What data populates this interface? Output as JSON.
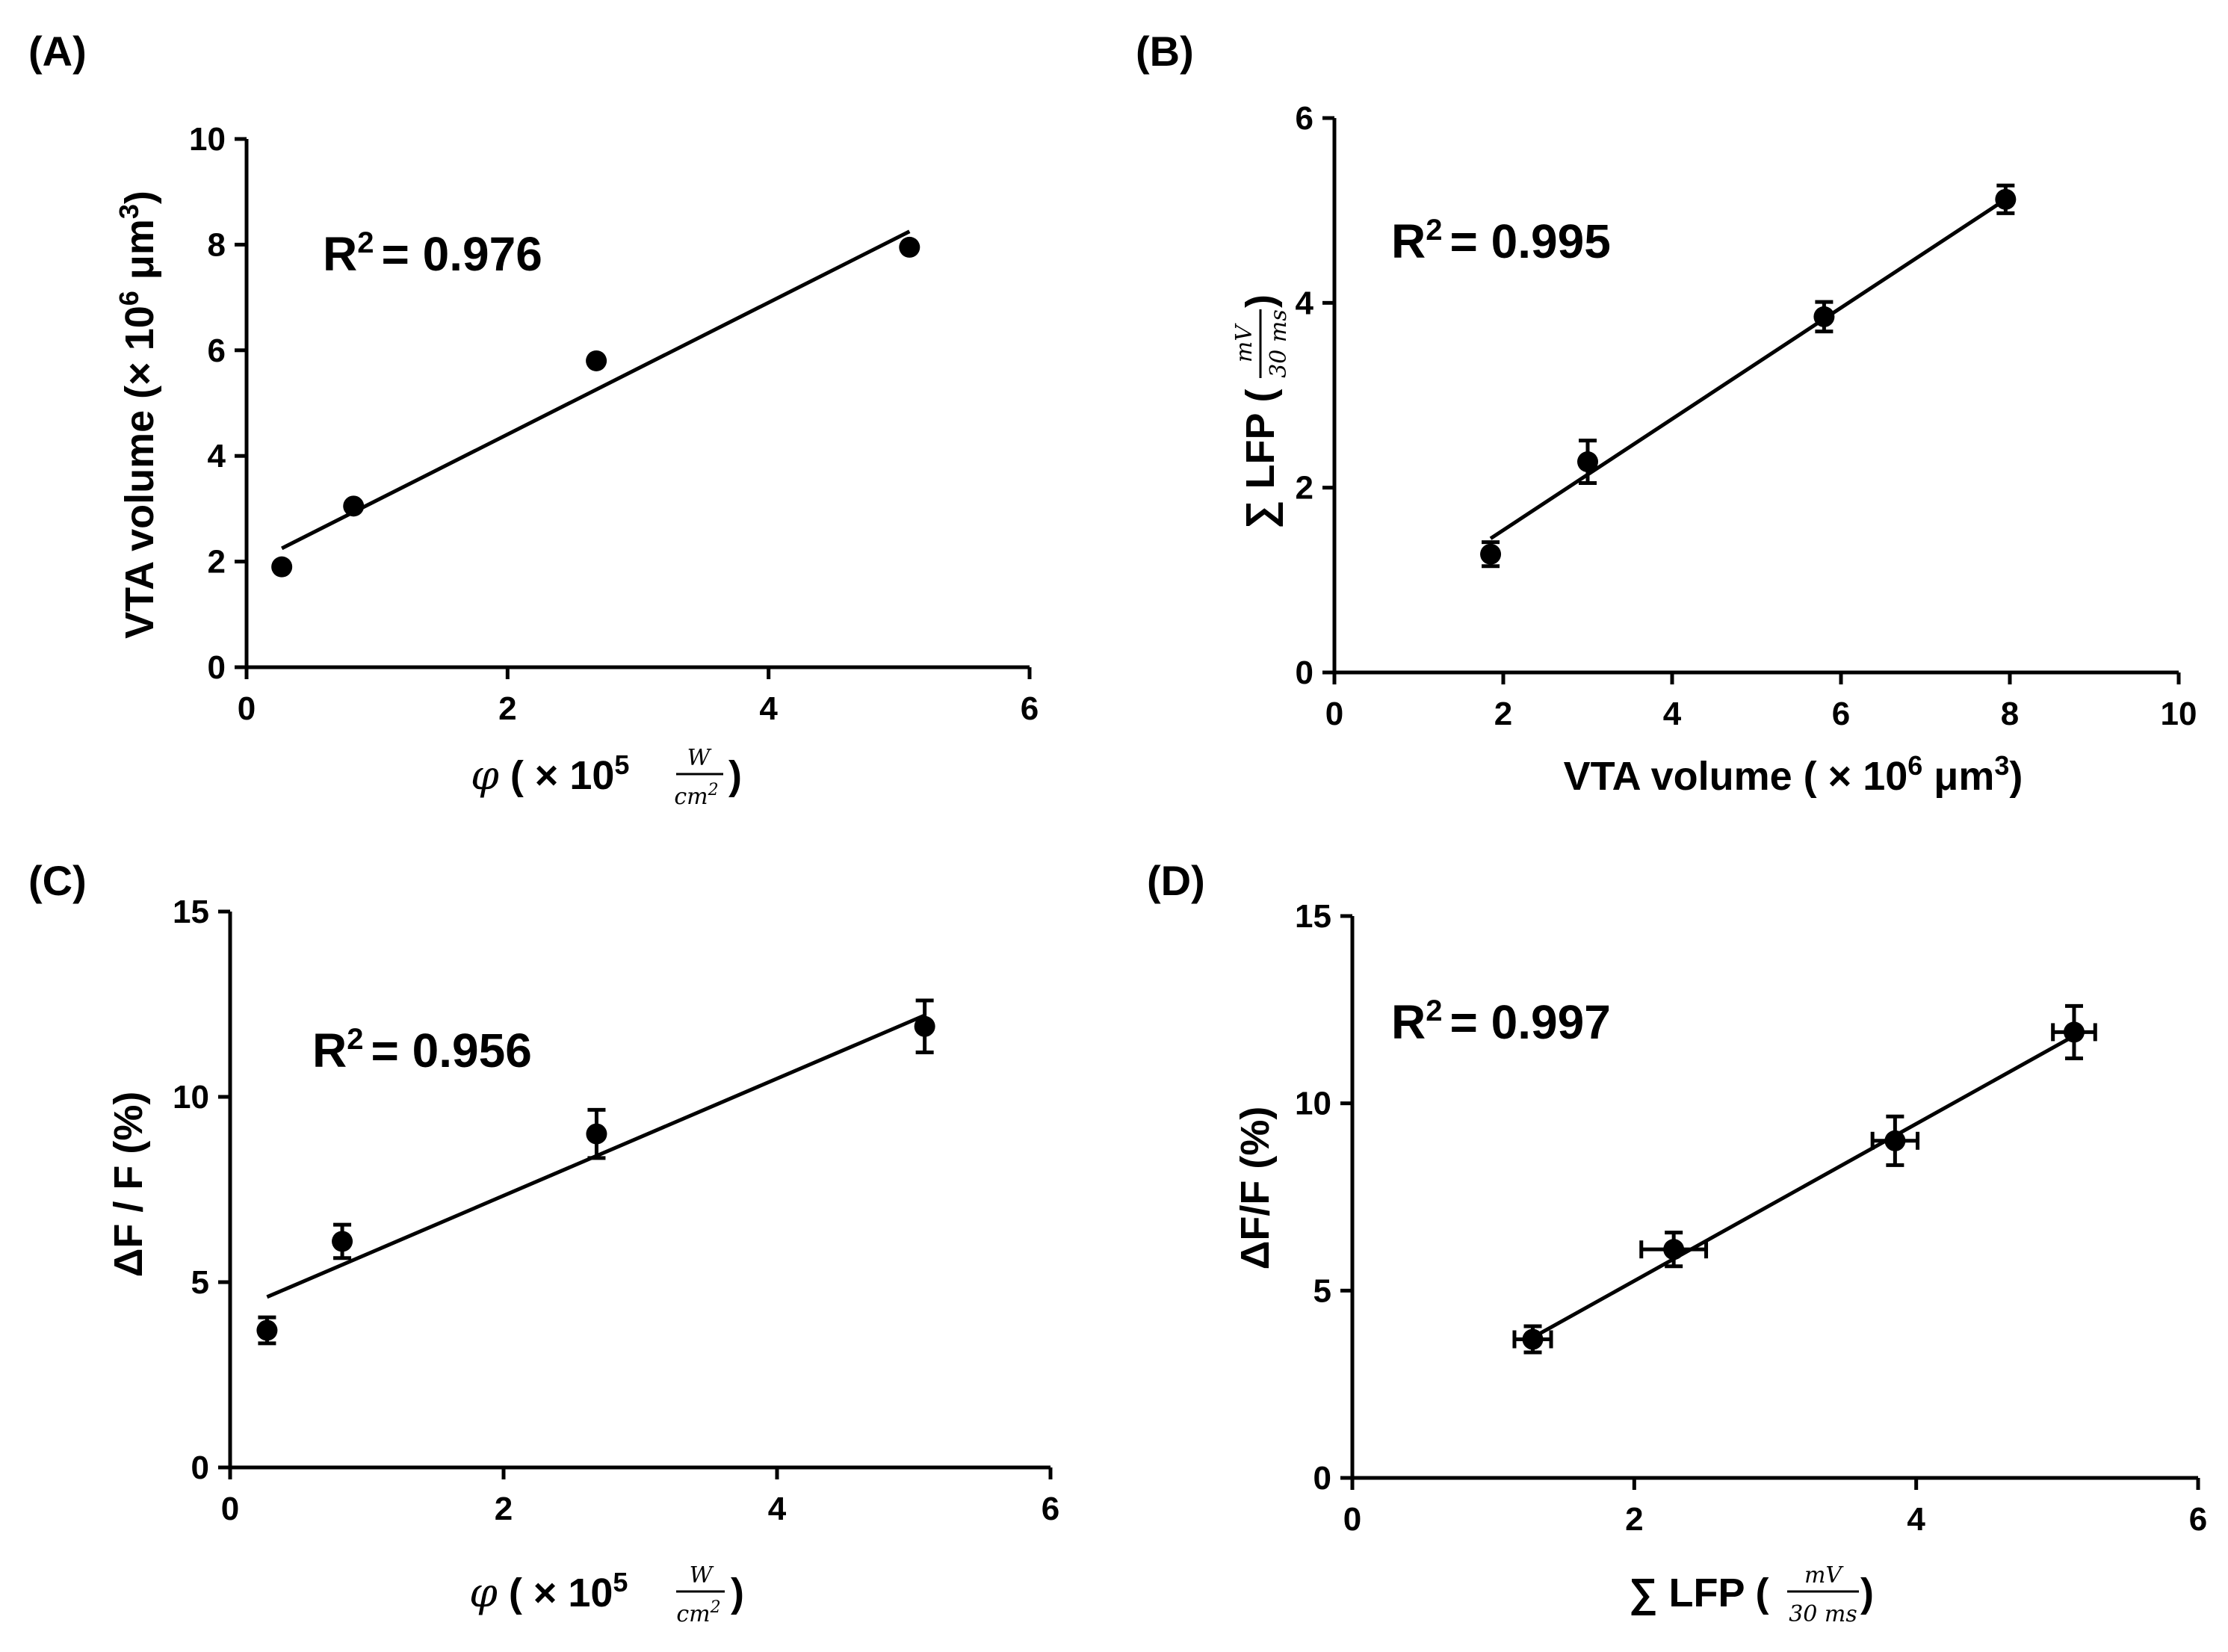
{
  "panels": {
    "A": {
      "label": "(A)",
      "r2_prefix": "R",
      "r2_sup": "2",
      "r2_value": "= 0.976",
      "xlabel": {
        "sym": "φ",
        "pre": " ( × 10",
        "sup": "5",
        "num": "W",
        "den": "cm",
        "den_sup": "2",
        "post": " )"
      },
      "ylabel": {
        "pre": "VTA volume (× 10",
        "sup": "6",
        "mid": " μm",
        "sup2": "3",
        "post": ")"
      }
    },
    "B": {
      "label": "(B)",
      "r2_prefix": "R",
      "r2_sup": "2",
      "r2_value": "= 0.995",
      "xlabel": {
        "pre": "VTA volume ( × 10",
        "sup": "6",
        "mid": " μm",
        "sup2": "3",
        "post": ")"
      },
      "ylabel": {
        "sym": "∑ LFP (",
        "num": "mV",
        "den": "30 ms",
        "post": ")"
      }
    },
    "C": {
      "label": "(C)",
      "r2_prefix": "R",
      "r2_sup": "2",
      "r2_value": "= 0.956",
      "xlabel": {
        "sym": "φ",
        "pre": " ( × 10",
        "sup": "5",
        "num": "W",
        "den": "cm",
        "den_sup": "2",
        "post": " )"
      },
      "ylabel": {
        "text": "ΔF / F (%)"
      }
    },
    "D": {
      "label": "(D)",
      "r2_prefix": "R",
      "r2_sup": "2",
      "r2_value": "= 0.997",
      "xlabel": {
        "sym": "∑ LFP (",
        "num": "mV",
        "den": "30 ms",
        "post": ")"
      },
      "ylabel": {
        "text": "ΔF/F (%)"
      }
    }
  },
  "chart_data": [
    {
      "id": "A",
      "type": "scatter",
      "title": "(A)",
      "xlabel": "φ ( × 10^5 W/cm^2 )",
      "ylabel": "VTA volume (× 10^6 μm^3)",
      "xlim": [
        0,
        6
      ],
      "ylim": [
        0,
        10
      ],
      "xticks": [
        "0",
        "2",
        "4",
        "6"
      ],
      "yticks": [
        "0",
        "2",
        "4",
        "6",
        "8",
        "10"
      ],
      "series": [
        {
          "name": "data",
          "x": [
            0.27,
            0.82,
            2.68,
            5.08
          ],
          "y": [
            1.9,
            3.05,
            5.8,
            7.95
          ]
        }
      ],
      "fit": {
        "x": [
          0.27,
          5.08
        ],
        "y": [
          2.25,
          8.25
        ]
      },
      "annotation": "R2 = 0.976"
    },
    {
      "id": "B",
      "type": "scatter",
      "title": "(B)",
      "xlabel": "VTA volume ( × 10^6 μm^3)",
      "ylabel": "∑ LFP (mV / 30 ms)",
      "xlim": [
        0,
        10
      ],
      "ylim": [
        0,
        6
      ],
      "xticks": [
        "0",
        "2",
        "4",
        "6",
        "8",
        "10"
      ],
      "yticks": [
        "0",
        "2",
        "4",
        "6"
      ],
      "series": [
        {
          "name": "data",
          "x": [
            1.85,
            3.0,
            5.8,
            7.95
          ],
          "y": [
            1.28,
            2.28,
            3.85,
            5.12
          ],
          "yerr": [
            0.13,
            0.23,
            0.16,
            0.15
          ]
        }
      ],
      "fit": {
        "x": [
          1.85,
          7.95
        ],
        "y": [
          1.45,
          5.12
        ]
      },
      "annotation": "R2 = 0.995"
    },
    {
      "id": "C",
      "type": "scatter",
      "title": "(C)",
      "xlabel": "φ ( × 10^5 W/cm^2 )",
      "ylabel": "ΔF / F (%)",
      "xlim": [
        0,
        6
      ],
      "ylim": [
        0,
        15
      ],
      "xticks": [
        "0",
        "2",
        "4",
        "6"
      ],
      "yticks": [
        "0",
        "5",
        "10",
        "15"
      ],
      "series": [
        {
          "name": "data",
          "x": [
            0.27,
            0.82,
            2.68,
            5.08
          ],
          "y": [
            3.7,
            6.1,
            9.0,
            11.9
          ],
          "yerr": [
            0.35,
            0.45,
            0.65,
            0.7
          ]
        }
      ],
      "fit": {
        "x": [
          0.27,
          5.08
        ],
        "y": [
          4.6,
          12.2
        ]
      },
      "annotation": "R2 = 0.956"
    },
    {
      "id": "D",
      "type": "scatter",
      "title": "(D)",
      "xlabel": "∑ LFP (mV / 30 ms)",
      "ylabel": "ΔF/F (%)",
      "xlim": [
        0,
        6
      ],
      "ylim": [
        0,
        15
      ],
      "xticks": [
        "0",
        "2",
        "4",
        "6"
      ],
      "yticks": [
        "0",
        "5",
        "10",
        "15"
      ],
      "series": [
        {
          "name": "data",
          "x": [
            1.28,
            2.28,
            3.85,
            5.12
          ],
          "y": [
            3.7,
            6.1,
            9.0,
            11.9
          ],
          "xerr": [
            0.13,
            0.23,
            0.16,
            0.15
          ],
          "yerr": [
            0.35,
            0.45,
            0.65,
            0.7
          ]
        }
      ],
      "fit": {
        "x": [
          1.28,
          5.12
        ],
        "y": [
          3.75,
          11.8
        ]
      },
      "annotation": "R2 = 0.997"
    }
  ]
}
